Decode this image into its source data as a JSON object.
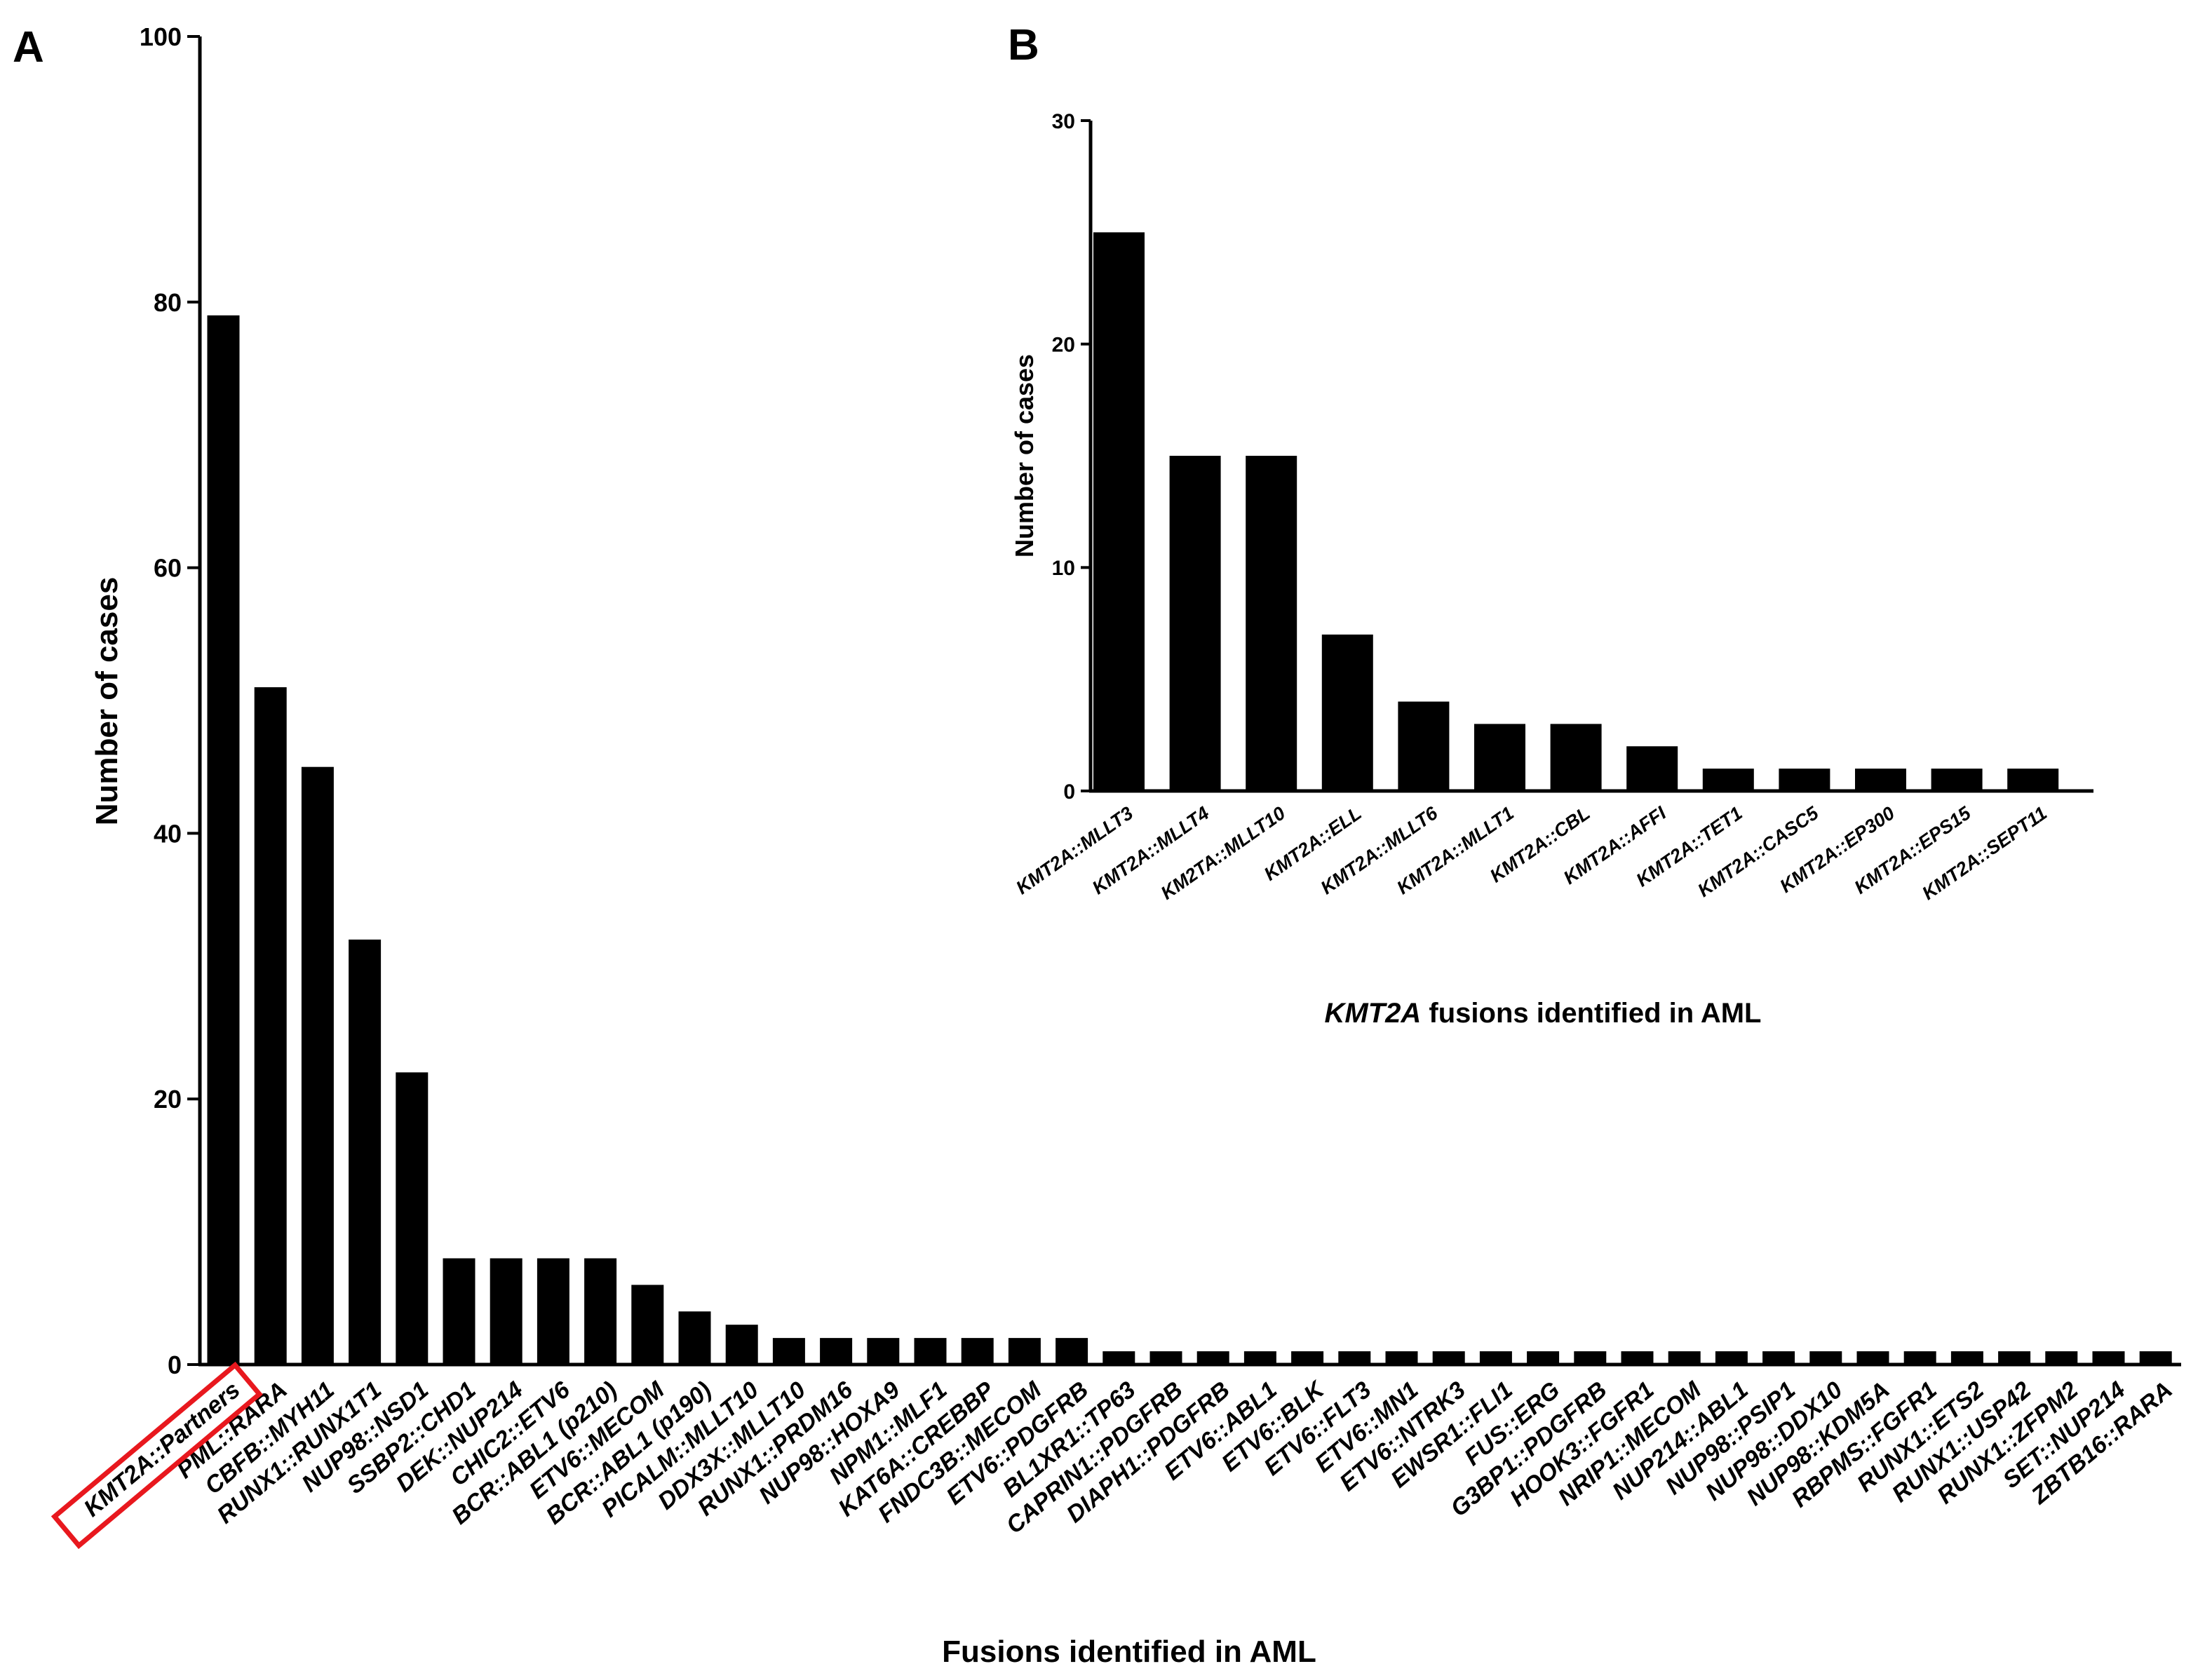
{
  "panels": {
    "a_label": "A",
    "b_label": "B"
  },
  "colors": {
    "bar": "#000000",
    "highlight": "#e8181e"
  },
  "chart_data": [
    {
      "id": "A",
      "type": "bar",
      "title": "",
      "xlabel": "Fusions identified in AML",
      "ylabel": "Number of cases",
      "ylim": [
        0,
        100
      ],
      "yticks": [
        0,
        20,
        40,
        60,
        80,
        100
      ],
      "highlighted_category": "KMT2A::Partners",
      "categories": [
        "KMT2A::Partners",
        "PML::RARA",
        "CBFB::MYH11",
        "RUNX1::RUNX1T1",
        "NUP98::NSD1",
        "SSBP2::CHD1",
        "DEK::NUP214",
        "CHIC2::ETV6",
        "BCR::ABL1 (p210)",
        "ETV6::MECOM",
        "BCR::ABL1 (p190)",
        "PICALM::MLLT10",
        "DDX3X::MLLT10",
        "RUNX1::PRDM16",
        "NUP98::HOXA9",
        "NPM1::MLF1",
        "KAT6A::CREBBP",
        "FNDC3B::MECOM",
        "ETV6::PDGFRB",
        "BL1XR1::TP63",
        "CAPRIN1::PDGFRB",
        "DIAPH1::PDGFRB",
        "ETV6::ABL1",
        "ETV6::BLK",
        "ETV6::FLT3",
        "ETV6::MN1",
        "ETV6::NTRK3",
        "EWSR1::FLI1",
        "FUS::ERG",
        "G3BP1::PDGFRB",
        "HOOK3::FGFR1",
        "NRIP1::MECOM",
        "NUP214::ABL1",
        "NUP98::PSIP1",
        "NUP98::DDX10",
        "NUP98::KDM5A",
        "RBPMS::FGFR1",
        "RUNX1::ETS2",
        "RUNX1::USP42",
        "RUNX1::ZFPM2",
        "SET::NUP214",
        "ZBTB16::RARA"
      ],
      "values": [
        79,
        51,
        45,
        32,
        22,
        8,
        8,
        8,
        8,
        6,
        4,
        3,
        2,
        2,
        2,
        2,
        2,
        2,
        2,
        1,
        1,
        1,
        1,
        1,
        1,
        1,
        1,
        1,
        1,
        1,
        1,
        1,
        1,
        1,
        1,
        1,
        1,
        1,
        1,
        1,
        1,
        1
      ]
    },
    {
      "id": "B",
      "type": "bar",
      "title": "",
      "xlabel_italic": "KMT2A",
      "xlabel_rest": " fusions identified in AML",
      "ylabel": "Number of cases",
      "ylim": [
        0,
        30
      ],
      "yticks": [
        0,
        10,
        20,
        30
      ],
      "categories": [
        "KMT2A::MLLT3",
        "KMT2A::MLLT4",
        "KM2TA::MLLT10",
        "KMT2A::ELL",
        "KMT2A::MLLT6",
        "KMT2A::MLLT1",
        "KMT2A::CBL",
        "KMT2A::AFFI",
        "KMT2A::TET1",
        "KMT2A::CASC5",
        "KMT2A::EP300",
        "KMT2A::EPS15",
        "KMT2A::SEPT11"
      ],
      "values": [
        25,
        15,
        15,
        7,
        4,
        3,
        3,
        2,
        1,
        1,
        1,
        1,
        1
      ]
    }
  ]
}
